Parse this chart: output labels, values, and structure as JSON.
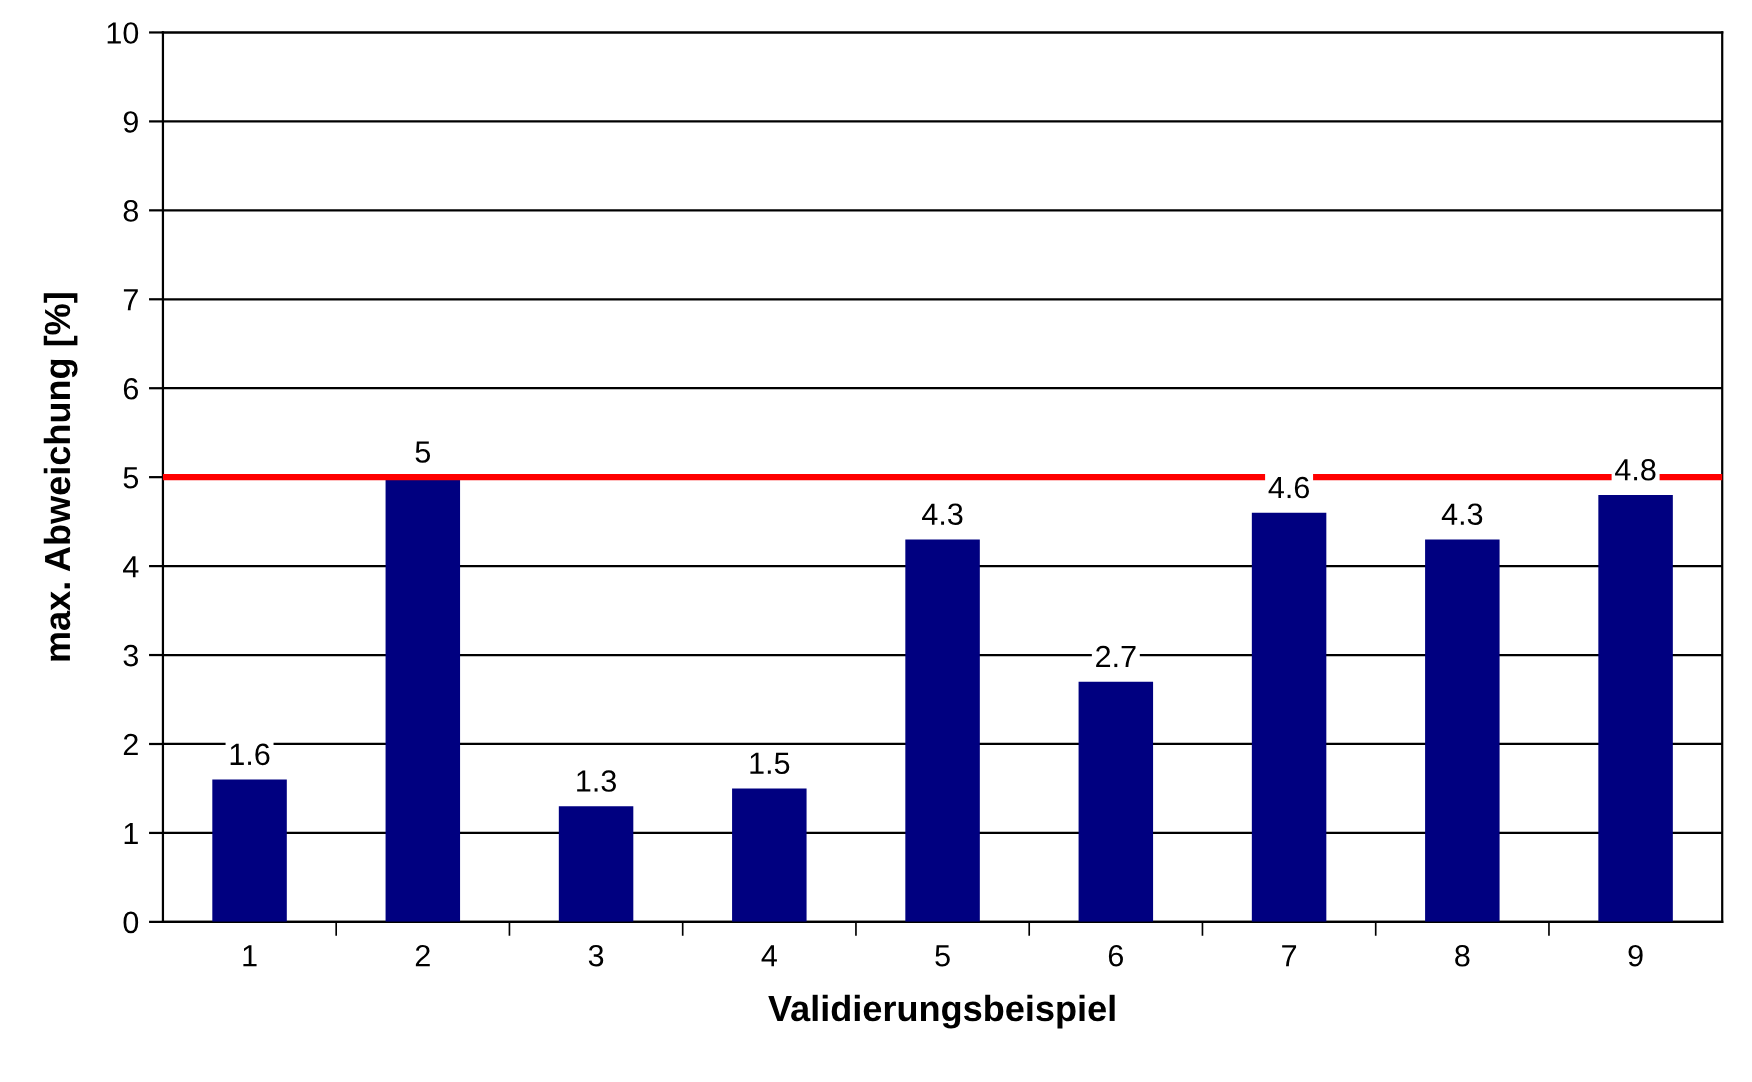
{
  "chart_data": {
    "type": "bar",
    "xlabel": "Validierungsbeispiel",
    "ylabel": "max. Abweichung [%]",
    "categories": [
      "1",
      "2",
      "3",
      "4",
      "5",
      "6",
      "7",
      "8",
      "9"
    ],
    "values": [
      1.6,
      5,
      1.3,
      1.5,
      4.3,
      2.7,
      4.6,
      4.3,
      4.8
    ],
    "color": "#000080",
    "data_labels": true,
    "ylim": [
      0,
      10
    ],
    "yticks": [
      0,
      1,
      2,
      3,
      4,
      5,
      6,
      7,
      8,
      9,
      10
    ],
    "grid": "y",
    "ref_lines": [
      {
        "axis": "y",
        "value": 5,
        "color": "#ff0000",
        "line_style": "solid"
      }
    ]
  }
}
